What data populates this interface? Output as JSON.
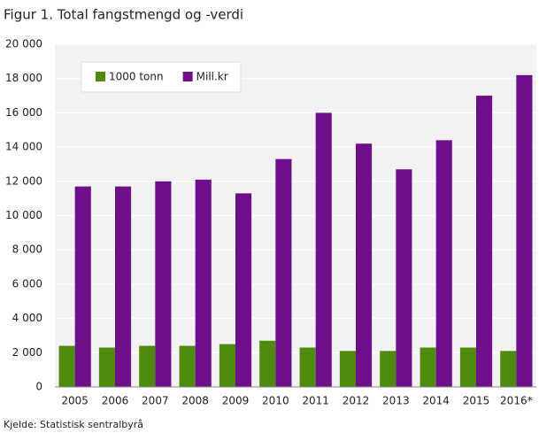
{
  "chart_data": {
    "type": "bar",
    "title": "Figur 1. Total fangstmengd og -verdi",
    "source": "Kjelde: Statistisk sentralbyrå",
    "categories": [
      "2005",
      "2006",
      "2007",
      "2008",
      "2009",
      "2010",
      "2011",
      "2012",
      "2013",
      "2014",
      "2015",
      "2016*"
    ],
    "series": [
      {
        "name": "1000 tonn",
        "color": "#4e8a0e",
        "values": [
          2400,
          2300,
          2400,
          2400,
          2500,
          2700,
          2300,
          2100,
          2100,
          2300,
          2300,
          2100
        ]
      },
      {
        "name": "Mill.kr",
        "color": "#6e0e88",
        "values": [
          11700,
          11700,
          12000,
          12100,
          11300,
          13300,
          16000,
          14200,
          12700,
          14400,
          17000,
          18200
        ]
      }
    ],
    "ylim": [
      0,
      20000
    ],
    "yticks": [
      0,
      {
        "value": 2000,
        "label": "2 000"
      },
      {
        "value": 4000,
        "label": "4 000"
      },
      {
        "value": 6000,
        "label": "6 000"
      },
      {
        "value": 8000,
        "label": "8 000"
      },
      {
        "value": 10000,
        "label": "10 000"
      },
      {
        "value": 12000,
        "label": "12 000"
      },
      {
        "value": 14000,
        "label": "14 000"
      },
      {
        "value": 16000,
        "label": "16 000"
      },
      {
        "value": 18000,
        "label": "18 000"
      },
      {
        "value": 20000,
        "label": "20 000"
      }
    ],
    "grid": true,
    "legend": "top-left"
  }
}
